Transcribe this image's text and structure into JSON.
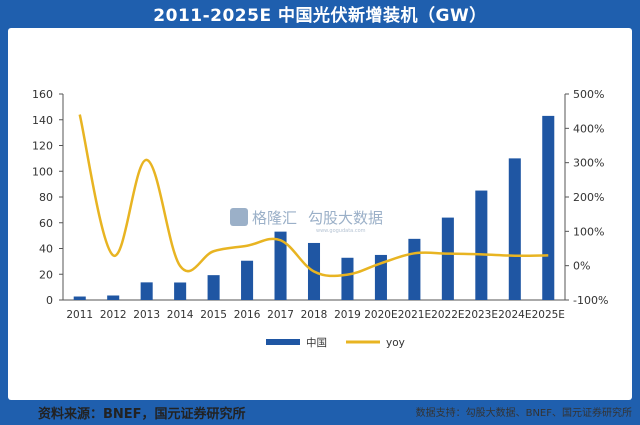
{
  "header": {
    "title": "2011-2025E 中国光伏新增装机（GW）"
  },
  "chart_data": {
    "type": "bar",
    "title": "2011-2025E 中国光伏新增装机（GW）",
    "categories": [
      "2011",
      "2012",
      "2013",
      "2014",
      "2015",
      "2016",
      "2017",
      "2018",
      "2019",
      "2020E",
      "2021E",
      "2022E",
      "2023E",
      "2024E",
      "2025E"
    ],
    "series": [
      {
        "name": "中国",
        "type": "bar",
        "axis": "left",
        "values": [
          2.7,
          3.5,
          13.7,
          13.6,
          19.3,
          30.5,
          53.1,
          44.3,
          32.8,
          35.0,
          47.5,
          64.0,
          85.0,
          110.0,
          143.0
        ]
      },
      {
        "name": "yoy",
        "type": "line",
        "axis": "right",
        "values": [
          4.4,
          0.3,
          3.08,
          -0.01,
          0.42,
          0.58,
          0.74,
          -0.17,
          -0.26,
          0.07,
          0.36,
          0.35,
          0.33,
          0.29,
          0.3
        ]
      }
    ],
    "y_left": {
      "min": 0,
      "max": 160,
      "ticks": [
        "0",
        "20",
        "40",
        "60",
        "80",
        "100",
        "120",
        "140",
        "160"
      ]
    },
    "y_right": {
      "min": -1,
      "max": 5,
      "ticks": [
        "-100%",
        "0%",
        "100%",
        "200%",
        "300%",
        "400%",
        "500%"
      ]
    },
    "colors": {
      "bar": "#1f56a3",
      "line": "#e8b422",
      "header_bg": "#1f5fae"
    },
    "legend": {
      "position": "bottom",
      "items": [
        "中国",
        "yoy"
      ]
    }
  },
  "watermark": {
    "brand": "格隆汇",
    "name": "勾股大数据",
    "url": "www.gogudata.com"
  },
  "source_text": "资料来源：BNEF，国元证券研究所",
  "footer_text": "数据支持：勾股大数据、BNEF、国元证券研究所"
}
